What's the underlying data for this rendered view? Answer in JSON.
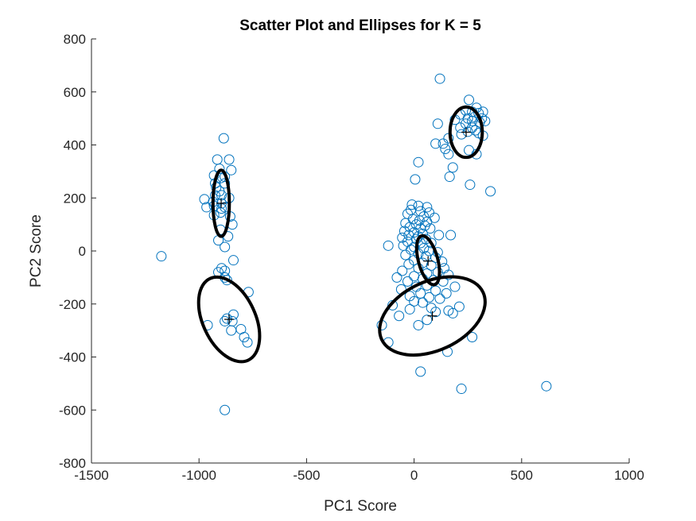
{
  "chart_data": {
    "type": "scatter",
    "title": "Scatter Plot and Ellipses for K = 5",
    "xlabel": "PC1 Score",
    "ylabel": "PC2 Score",
    "xlim": [
      -1500,
      1000
    ],
    "ylim": [
      -800,
      800
    ],
    "xticks": [
      -1500,
      -1000,
      -500,
      0,
      500,
      1000
    ],
    "xtick_labels": [
      "-1500",
      "-1000",
      "-500",
      "0",
      "500",
      "1000"
    ],
    "yticks": [
      -800,
      -600,
      -400,
      -200,
      0,
      200,
      400,
      600,
      800
    ],
    "ytick_labels": [
      "-800",
      "-600",
      "-400",
      "-200",
      "0",
      "200",
      "400",
      "600",
      "800"
    ],
    "grid": false,
    "point_color": "#0072BD",
    "ellipse_color": "#000000",
    "points": [
      [
        -1175,
        -20
      ],
      [
        -885,
        425
      ],
      [
        -915,
        345
      ],
      [
        -860,
        345
      ],
      [
        -850,
        305
      ],
      [
        -905,
        310
      ],
      [
        -930,
        285
      ],
      [
        -900,
        275
      ],
      [
        -880,
        280
      ],
      [
        -925,
        255
      ],
      [
        -880,
        255
      ],
      [
        -920,
        240
      ],
      [
        -905,
        225
      ],
      [
        -925,
        210
      ],
      [
        -895,
        210
      ],
      [
        -860,
        200
      ],
      [
        -975,
        195
      ],
      [
        -935,
        185
      ],
      [
        -895,
        180
      ],
      [
        -965,
        165
      ],
      [
        -930,
        170
      ],
      [
        -895,
        160
      ],
      [
        -880,
        165
      ],
      [
        -930,
        135
      ],
      [
        -900,
        145
      ],
      [
        -855,
        130
      ],
      [
        -845,
        100
      ],
      [
        -900,
        80
      ],
      [
        -865,
        55
      ],
      [
        -910,
        40
      ],
      [
        -880,
        15
      ],
      [
        -840,
        -35
      ],
      [
        -895,
        -65
      ],
      [
        -880,
        -75
      ],
      [
        -910,
        -80
      ],
      [
        -880,
        -100
      ],
      [
        -870,
        -110
      ],
      [
        -770,
        -155
      ],
      [
        -840,
        -240
      ],
      [
        -870,
        -255
      ],
      [
        -845,
        -265
      ],
      [
        -880,
        -265
      ],
      [
        -960,
        -280
      ],
      [
        -805,
        -295
      ],
      [
        -850,
        -300
      ],
      [
        -790,
        -325
      ],
      [
        -775,
        -345
      ],
      [
        -880,
        -600
      ],
      [
        120,
        650
      ],
      [
        255,
        570
      ],
      [
        290,
        540
      ],
      [
        240,
        530
      ],
      [
        270,
        525
      ],
      [
        320,
        525
      ],
      [
        300,
        520
      ],
      [
        215,
        515
      ],
      [
        280,
        505
      ],
      [
        250,
        500
      ],
      [
        315,
        500
      ],
      [
        190,
        495
      ],
      [
        270,
        490
      ],
      [
        330,
        490
      ],
      [
        305,
        485
      ],
      [
        240,
        480
      ],
      [
        110,
        480
      ],
      [
        215,
        465
      ],
      [
        270,
        465
      ],
      [
        285,
        455
      ],
      [
        250,
        450
      ],
      [
        300,
        445
      ],
      [
        220,
        440
      ],
      [
        320,
        435
      ],
      [
        160,
        425
      ],
      [
        135,
        405
      ],
      [
        100,
        405
      ],
      [
        145,
        385
      ],
      [
        255,
        380
      ],
      [
        290,
        365
      ],
      [
        160,
        365
      ],
      [
        20,
        335
      ],
      [
        180,
        315
      ],
      [
        165,
        280
      ],
      [
        5,
        270
      ],
      [
        260,
        250
      ],
      [
        355,
        225
      ],
      [
        -10,
        175
      ],
      [
        20,
        170
      ],
      [
        60,
        165
      ],
      [
        -15,
        155
      ],
      [
        30,
        150
      ],
      [
        70,
        145
      ],
      [
        -30,
        140
      ],
      [
        45,
        130
      ],
      [
        95,
        125
      ],
      [
        -5,
        120
      ],
      [
        25,
        115
      ],
      [
        60,
        110
      ],
      [
        -40,
        105
      ],
      [
        10,
        100
      ],
      [
        50,
        95
      ],
      [
        -20,
        90
      ],
      [
        30,
        85
      ],
      [
        75,
        85
      ],
      [
        -45,
        75
      ],
      [
        0,
        70
      ],
      [
        40,
        65
      ],
      [
        -25,
        60
      ],
      [
        20,
        55
      ],
      [
        170,
        60
      ],
      [
        115,
        60
      ],
      [
        -55,
        50
      ],
      [
        10,
        45
      ],
      [
        55,
        45
      ],
      [
        -30,
        35
      ],
      [
        30,
        30
      ],
      [
        80,
        30
      ],
      [
        -50,
        20
      ],
      [
        0,
        15
      ],
      [
        45,
        10
      ],
      [
        -120,
        20
      ],
      [
        -15,
        5
      ],
      [
        70,
        0
      ],
      [
        20,
        -10
      ],
      [
        110,
        -5
      ],
      [
        -40,
        -15
      ],
      [
        55,
        -20
      ],
      [
        100,
        -25
      ],
      [
        0,
        -35
      ],
      [
        40,
        -45
      ],
      [
        130,
        -40
      ],
      [
        -25,
        -50
      ],
      [
        80,
        -55
      ],
      [
        20,
        -65
      ],
      [
        140,
        -65
      ],
      [
        -55,
        -75
      ],
      [
        60,
        -85
      ],
      [
        110,
        -80
      ],
      [
        0,
        -95
      ],
      [
        160,
        -90
      ],
      [
        40,
        -105
      ],
      [
        -80,
        -100
      ],
      [
        90,
        -110
      ],
      [
        -30,
        -115
      ],
      [
        135,
        -115
      ],
      [
        60,
        -130
      ],
      [
        10,
        -135
      ],
      [
        190,
        -135
      ],
      [
        -60,
        -145
      ],
      [
        100,
        -150
      ],
      [
        30,
        -160
      ],
      [
        150,
        -160
      ],
      [
        -20,
        -170
      ],
      [
        70,
        -175
      ],
      [
        120,
        -180
      ],
      [
        0,
        -190
      ],
      [
        40,
        -195
      ],
      [
        210,
        -210
      ],
      [
        -100,
        -205
      ],
      [
        80,
        -215
      ],
      [
        -20,
        -220
      ],
      [
        160,
        -225
      ],
      [
        100,
        -230
      ],
      [
        -70,
        -245
      ],
      [
        180,
        -235
      ],
      [
        60,
        -260
      ],
      [
        -150,
        -280
      ],
      [
        20,
        -280
      ],
      [
        -120,
        -345
      ],
      [
        155,
        -380
      ],
      [
        270,
        -325
      ],
      [
        30,
        -455
      ],
      [
        220,
        -520
      ],
      [
        615,
        -510
      ]
    ],
    "ellipses": [
      {
        "cx": -897,
        "cy": 180,
        "rx": 38,
        "ry": 125,
        "angle_deg": 0
      },
      {
        "cx": -860,
        "cy": -258,
        "rx": 122,
        "ry": 170,
        "angle_deg": -25
      },
      {
        "cx": 242,
        "cy": 448,
        "rx": 75,
        "ry": 95,
        "angle_deg": 0
      },
      {
        "cx": 65,
        "cy": -35,
        "rx": 45,
        "ry": 95,
        "angle_deg": -15
      },
      {
        "cx": 85,
        "cy": -245,
        "rx": 260,
        "ry": 130,
        "angle_deg": -25
      }
    ],
    "centroids": [
      [
        -897,
        180
      ],
      [
        -860,
        -258
      ],
      [
        242,
        448
      ],
      [
        65,
        -38
      ],
      [
        85,
        -245
      ]
    ]
  }
}
